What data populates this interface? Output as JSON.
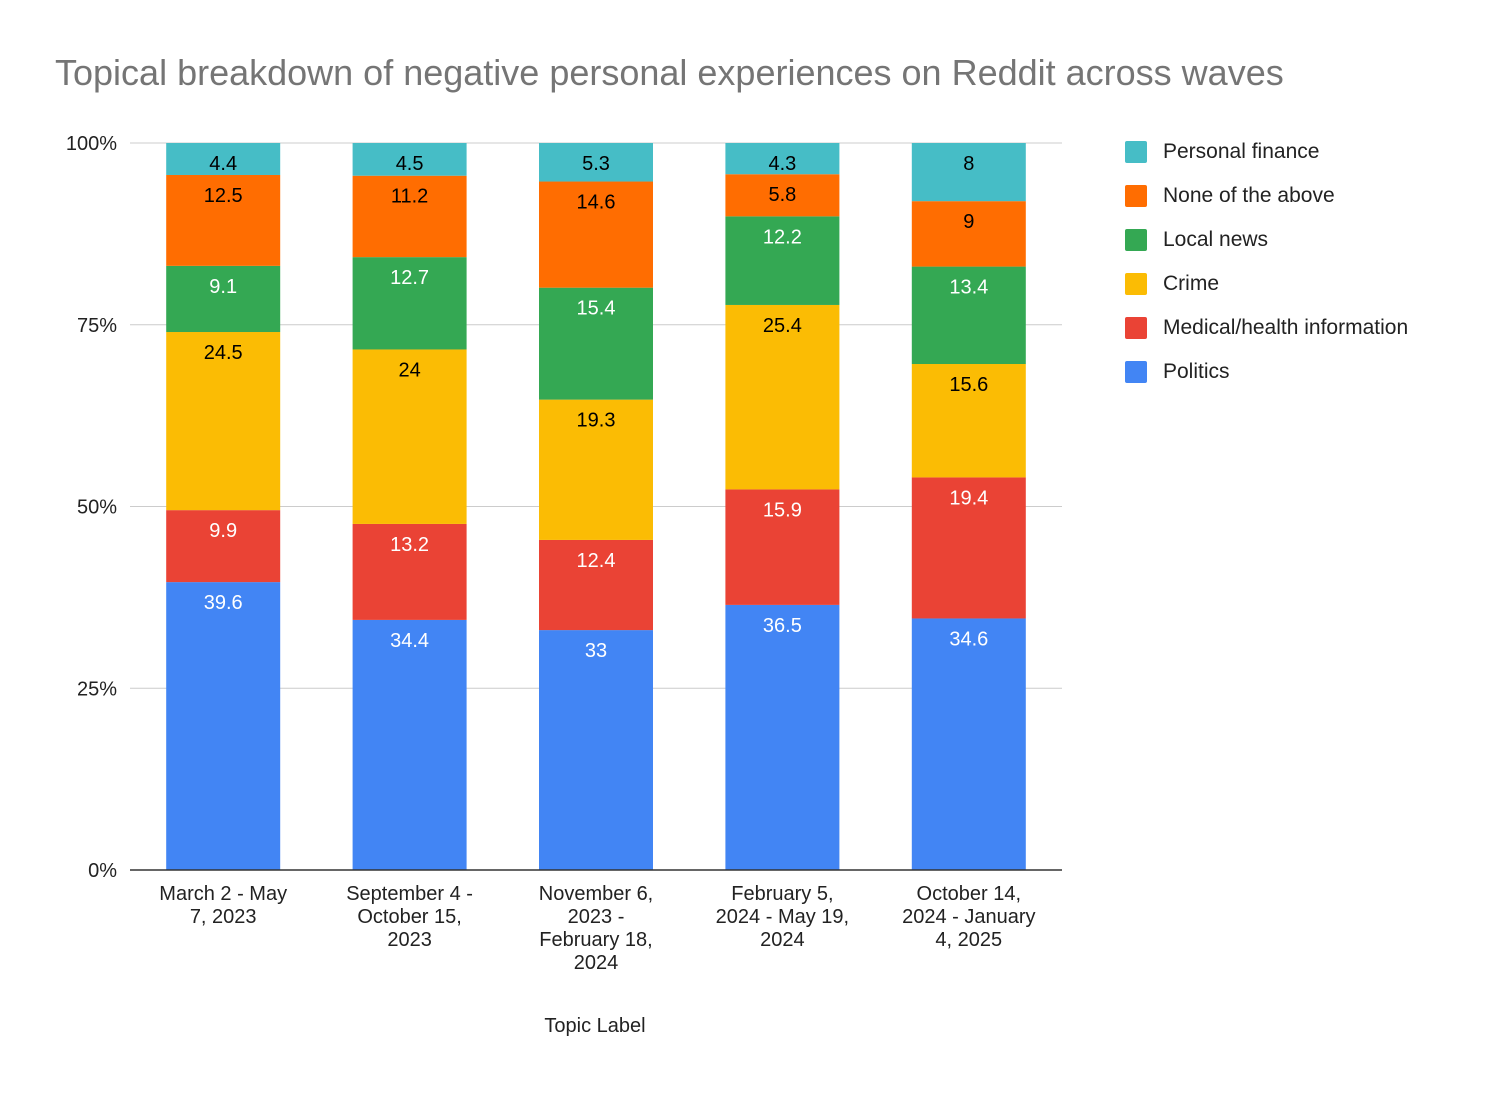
{
  "chart_data": {
    "type": "bar",
    "stacked": "percent",
    "title": "Topical breakdown of negative personal experiences on Reddit across waves",
    "xlabel": "Topic Label",
    "ylabel": "",
    "ylim": [
      0,
      100
    ],
    "yticks": [
      "0%",
      "25%",
      "50%",
      "75%",
      "100%"
    ],
    "grid": true,
    "legend_position": "right",
    "categories": [
      "March 2 - May\n7, 2023",
      "September 4 -\nOctober 15,\n2023",
      "November 6,\n2023 -\nFebruary 18,\n2024",
      "February 5,\n2024 - May 19,\n2024",
      "October 14,\n2024 - January\n4, 2025"
    ],
    "series": [
      {
        "name": "Politics",
        "color": "#4285F4",
        "label_color": "#ffffff",
        "values": [
          39.6,
          34.4,
          33,
          36.5,
          34.6
        ]
      },
      {
        "name": "Medical/health information",
        "color": "#EA4335",
        "label_color": "#ffffff",
        "values": [
          9.9,
          13.2,
          12.4,
          15.9,
          19.4
        ]
      },
      {
        "name": "Crime",
        "color": "#FBBC04",
        "label_color": "#000000",
        "values": [
          24.5,
          24,
          19.3,
          25.4,
          15.6
        ]
      },
      {
        "name": "Local news",
        "color": "#34A853",
        "label_color": "#ffffff",
        "values": [
          9.1,
          12.7,
          15.4,
          12.2,
          13.4
        ]
      },
      {
        "name": "None of the above",
        "color": "#FF6D01",
        "label_color": "#000000",
        "values": [
          12.5,
          11.2,
          14.6,
          5.8,
          9
        ]
      },
      {
        "name": "Personal finance",
        "color": "#46BDC6",
        "label_color": "#000000",
        "values": [
          4.4,
          4.5,
          5.3,
          4.3,
          8
        ]
      }
    ]
  }
}
